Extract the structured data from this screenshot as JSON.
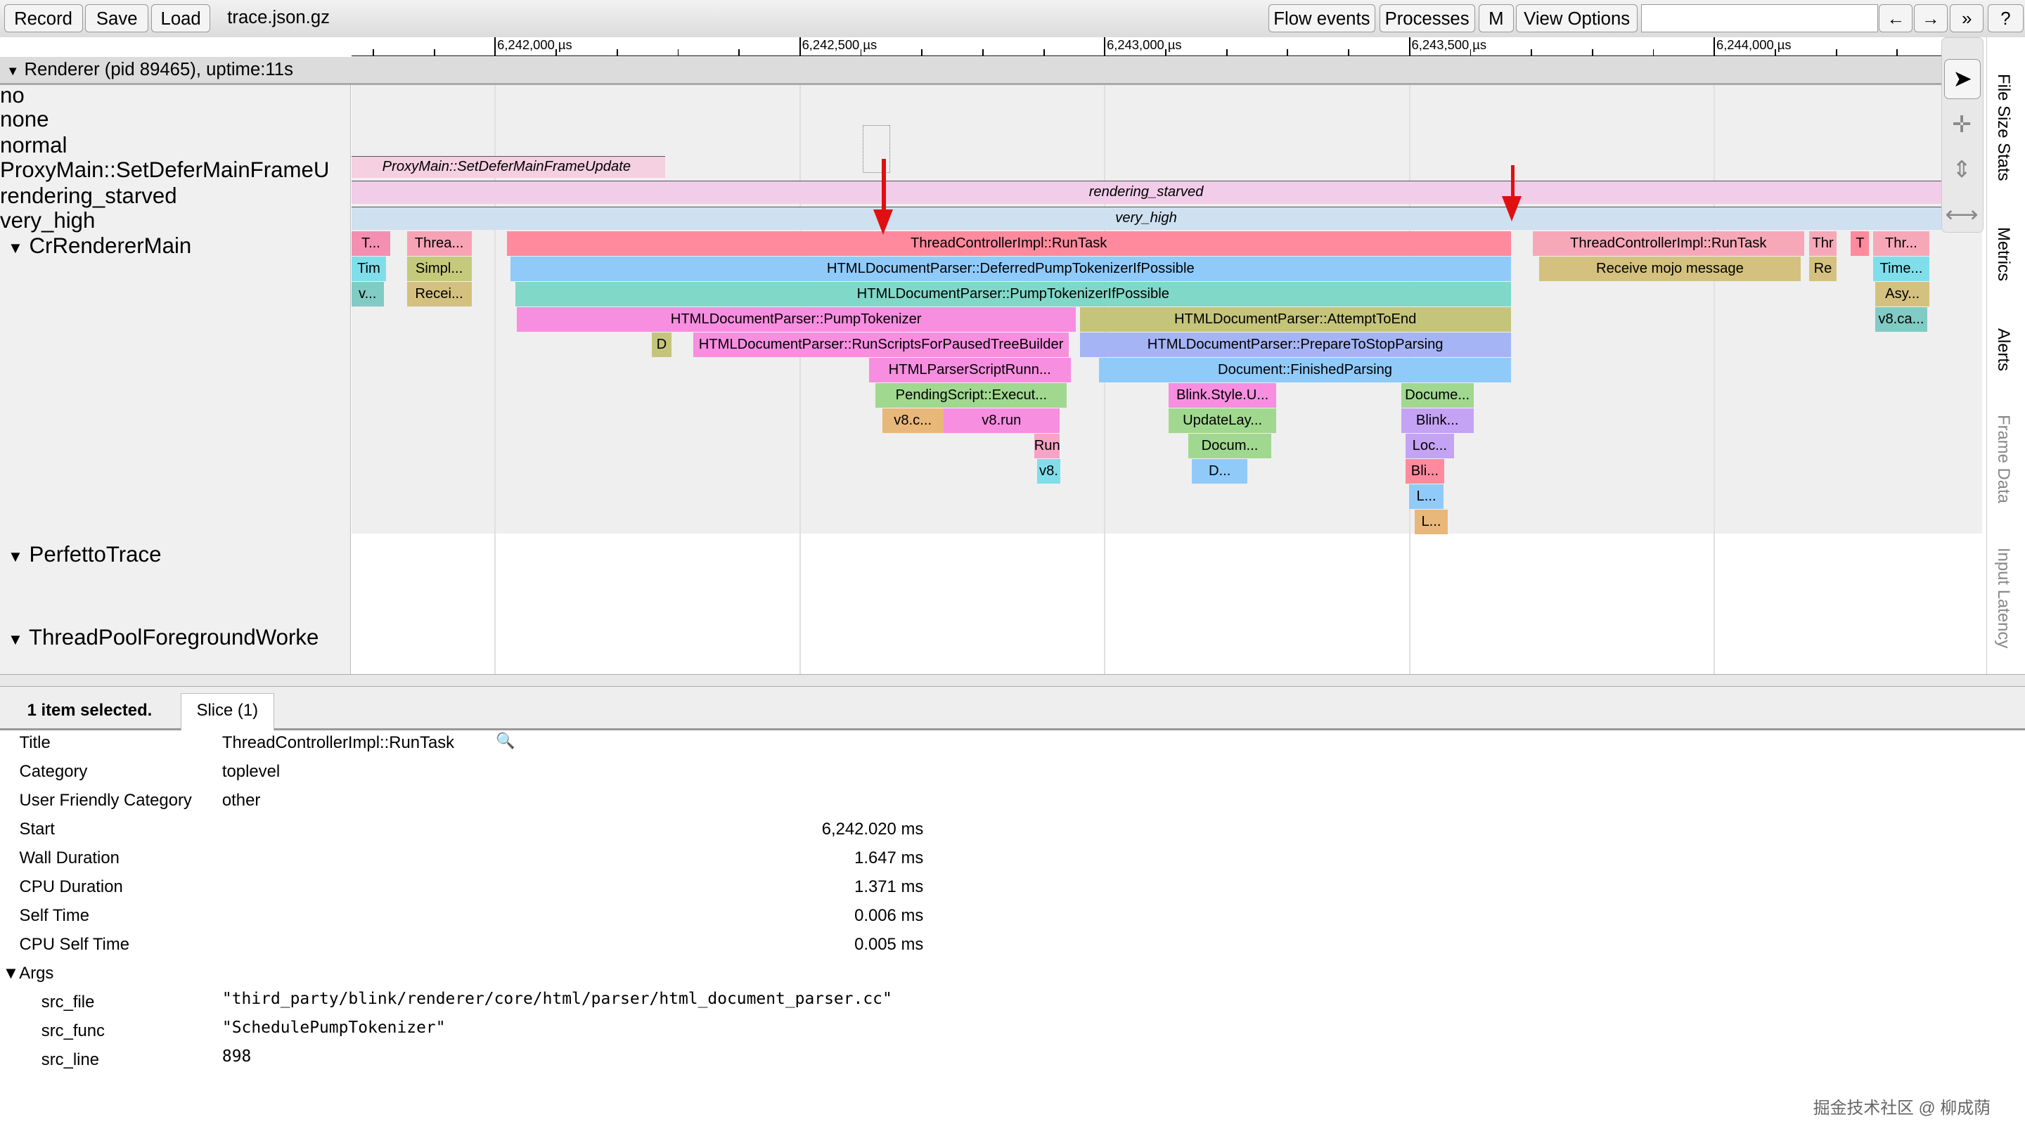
{
  "toolbar": {
    "record": "Record",
    "save": "Save",
    "load": "Load",
    "filename": "trace.json.gz",
    "flow_events": "Flow events",
    "processes": "Processes",
    "m": "M",
    "view_options": "View Options",
    "search_value": "",
    "prev": "←",
    "next": "→",
    "more": "»",
    "help": "?"
  },
  "ruler": {
    "labels": [
      "6,242,000 µs",
      "6,242,500 µs",
      "6,243,000 µs",
      "6,243,500 µs",
      "6,244,000 µs"
    ]
  },
  "process": {
    "title": "Renderer (pid 89465), uptime:11s"
  },
  "tracks": {
    "labels": [
      "no",
      "none",
      "normal",
      "ProxyMain::SetDeferMainFrameU",
      "rendering_starved",
      "very_high"
    ],
    "main_thread": "CrRendererMain",
    "perfetto": "PerfettoTrace",
    "threadpool": "ThreadPoolForegroundWorke",
    "top_slices": {
      "proxy": "ProxyMain::SetDeferMainFrameUpdate",
      "starved": "rendering_starved",
      "very_high": "very_high"
    }
  },
  "slices": [
    {
      "name": "T...",
      "start": 6241765,
      "dur": 64,
      "depth": 0,
      "color": "#f48fb1"
    },
    {
      "name": "Threa...",
      "start": 6241856,
      "dur": 106,
      "depth": 0,
      "color": "#f7a3b5"
    },
    {
      "name": "ThreadControllerImpl::RunTask",
      "start": 6242020,
      "dur": 1647,
      "depth": 0,
      "color": "#ff8a9e"
    },
    {
      "name": "ThreadControllerImpl::RunTask",
      "start": 6243703,
      "dur": 445,
      "depth": 0,
      "color": "#f7a8b8"
    },
    {
      "name": "Thr",
      "start": 6244156,
      "dur": 46,
      "depth": 0,
      "color": "#f7a8b8"
    },
    {
      "name": "T",
      "start": 6244225,
      "dur": 30,
      "depth": 0,
      "color": "#ff8a9e"
    },
    {
      "name": "Thr...",
      "start": 6244261,
      "dur": 93,
      "depth": 0,
      "color": "#f7a8b8"
    },
    {
      "name": "Tim",
      "start": 6241765,
      "dur": 57,
      "depth": 1,
      "color": "#80deea"
    },
    {
      "name": "Simpl...",
      "start": 6241856,
      "dur": 106,
      "depth": 1,
      "color": "#c5c97b"
    },
    {
      "name": "HTMLDocumentParser::DeferredPumpTokenizerIfPossible",
      "start": 6242026,
      "dur": 1641,
      "depth": 1,
      "color": "#90caf9"
    },
    {
      "name": "Receive mojo message",
      "start": 6243713,
      "dur": 430,
      "depth": 1,
      "color": "#d4c17f"
    },
    {
      "name": "Re",
      "start": 6244156,
      "dur": 46,
      "depth": 1,
      "color": "#d4c17f"
    },
    {
      "name": "Time...",
      "start": 6244261,
      "dur": 93,
      "depth": 1,
      "color": "#80deea"
    },
    {
      "name": "v...",
      "start": 6241765,
      "dur": 53,
      "depth": 2,
      "color": "#80cbc4"
    },
    {
      "name": "Recei...",
      "start": 6241856,
      "dur": 106,
      "depth": 2,
      "color": "#d4c17f"
    },
    {
      "name": "HTMLDocumentParser::PumpTokenizerIfPossible",
      "start": 6242034,
      "dur": 1633,
      "depth": 2,
      "color": "#7fd8c8"
    },
    {
      "name": "Asy...",
      "start": 6244265,
      "dur": 89,
      "depth": 2,
      "color": "#d4c17f"
    },
    {
      "name": "HTMLDocumentParser::PumpTokenizer",
      "start": 6242036,
      "dur": 917,
      "depth": 3,
      "color": "#f78ee0"
    },
    {
      "name": "HTMLDocumentParser::AttemptToEnd",
      "start": 6242960,
      "dur": 707,
      "depth": 3,
      "color": "#c5c47b"
    },
    {
      "name": "v8.ca...",
      "start": 6244265,
      "dur": 85,
      "depth": 3,
      "color": "#80cbc4"
    },
    {
      "name": "D",
      "start": 6242258,
      "dur": 32,
      "depth": 4,
      "color": "#c5c47b"
    },
    {
      "name": "HTMLDocumentParser::RunScriptsForPausedTreeBuilder",
      "start": 6242326,
      "dur": 616,
      "depth": 4,
      "color": "#f78ee0"
    },
    {
      "name": "HTMLDocumentParser::PrepareToStopParsing",
      "start": 6242960,
      "dur": 707,
      "depth": 4,
      "color": "#a5b4f4"
    },
    {
      "name": "HTMLParserScriptRunn...",
      "start": 6242614,
      "dur": 331,
      "depth": 5,
      "color": "#f78ee0"
    },
    {
      "name": "Document::FinishedParsing",
      "start": 6242992,
      "dur": 675,
      "depth": 5,
      "color": "#90caf9"
    },
    {
      "name": "PendingScript::Execut...",
      "start": 6242625,
      "dur": 314,
      "depth": 6,
      "color": "#a0d88f"
    },
    {
      "name": "Blink.Style.U...",
      "start": 6243106,
      "dur": 176,
      "depth": 6,
      "color": "#f78ee0"
    },
    {
      "name": "Docume...",
      "start": 6243487,
      "dur": 119,
      "depth": 6,
      "color": "#a0d88f"
    },
    {
      "name": "v8.c...",
      "start": 6242636,
      "dur": 100,
      "depth": 7,
      "color": "#e8b77a"
    },
    {
      "name": "v8.run",
      "start": 6242736,
      "dur": 191,
      "depth": 7,
      "color": "#f78ee0"
    },
    {
      "name": "UpdateLay...",
      "start": 6243106,
      "dur": 176,
      "depth": 7,
      "color": "#a0d88f"
    },
    {
      "name": "Blink...",
      "start": 6243487,
      "dur": 119,
      "depth": 7,
      "color": "#c5a3f4"
    },
    {
      "name": "Run",
      "start": 6242885,
      "dur": 42,
      "depth": 8,
      "color": "#f7a3c5"
    },
    {
      "name": "Docum...",
      "start": 6243138,
      "dur": 136,
      "depth": 8,
      "color": "#a0d88f"
    },
    {
      "name": "Loc...",
      "start": 6243494,
      "dur": 80,
      "depth": 8,
      "color": "#c5a3f4"
    },
    {
      "name": "v8.",
      "start": 6242890,
      "dur": 38,
      "depth": 9,
      "color": "#80deea"
    },
    {
      "name": "D...",
      "start": 6243144,
      "dur": 91,
      "depth": 9,
      "color": "#90caf9"
    },
    {
      "name": "Bli...",
      "start": 6243494,
      "dur": 64,
      "depth": 9,
      "color": "#ff8a9e"
    },
    {
      "name": "L...",
      "start": 6243500,
      "dur": 57,
      "depth": 10,
      "color": "#90caf9"
    },
    {
      "name": "L...",
      "start": 6243509,
      "dur": 55,
      "depth": 11,
      "color": "#e8b77a"
    }
  ],
  "side_tabs": [
    "File Size Stats",
    "Metrics",
    "Alerts",
    "Frame Data",
    "Input Latency"
  ],
  "tool_icons": [
    "pointer-icon",
    "pan-icon",
    "zoom-icon",
    "timing-icon"
  ],
  "selection": {
    "summary": "1 item selected.",
    "tab": "Slice (1)"
  },
  "details": {
    "rows": [
      {
        "label": "Title",
        "value": "ThreadControllerImpl::RunTask"
      },
      {
        "label": "Category",
        "value": "toplevel"
      },
      {
        "label": "User Friendly Category",
        "value": "other"
      }
    ],
    "metrics": [
      {
        "label": "Start",
        "value": "6,242.020 ms"
      },
      {
        "label": "Wall Duration",
        "value": "1.647 ms"
      },
      {
        "label": "CPU Duration",
        "value": "1.371 ms"
      },
      {
        "label": "Self Time",
        "value": "0.006 ms"
      },
      {
        "label": "CPU Self Time",
        "value": "0.005 ms"
      }
    ],
    "args_label": "▼Args",
    "args": [
      {
        "label": "src_file",
        "value": "\"third_party/blink/renderer/core/html/parser/html_document_parser.cc\""
      },
      {
        "label": "src_func",
        "value": "\"SchedulePumpTokenizer\""
      },
      {
        "label": "src_line",
        "value": "898"
      }
    ]
  },
  "watermark": "掘金技术社区 @ 柳成荫"
}
